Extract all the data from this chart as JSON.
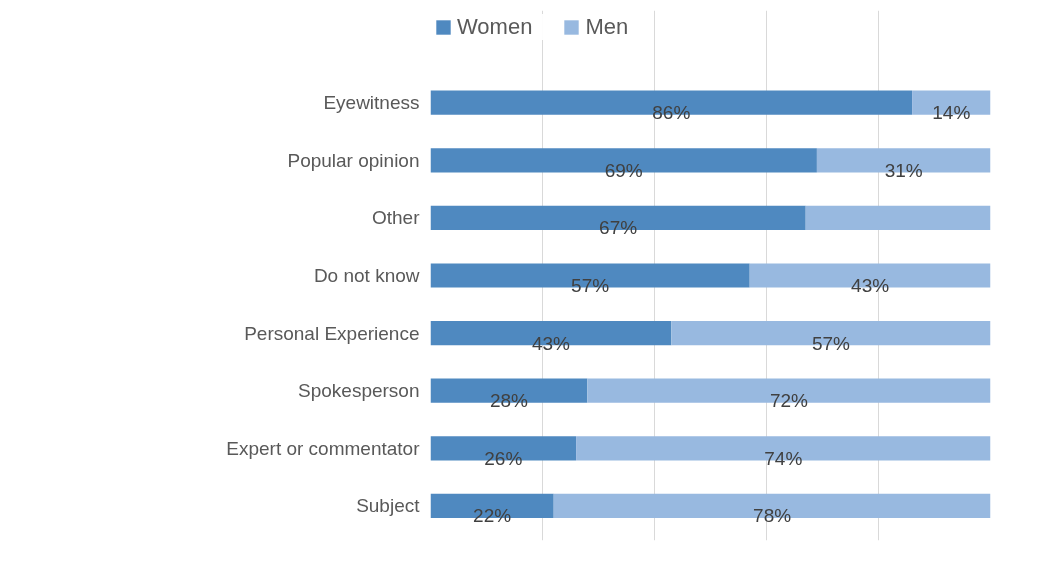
{
  "chart_data": {
    "type": "bar",
    "orientation": "horizontal",
    "stacked": true,
    "categories": [
      "Eyewitness",
      "Popular opinion",
      "Other",
      "Do not know",
      "Personal Experience",
      "Spokesperson",
      "Expert or commentator",
      "Subject"
    ],
    "series": [
      {
        "name": "Women",
        "color": "#4f89c0",
        "values": [
          86,
          69,
          67,
          57,
          43,
          28,
          26,
          22
        ],
        "value_labels": [
          "86%",
          "69%",
          "67%",
          "57%",
          "43%",
          "28%",
          "26%",
          "22%"
        ]
      },
      {
        "name": "Men",
        "color": "#98b9e0",
        "values": [
          14,
          31,
          33,
          43,
          57,
          72,
          74,
          78
        ],
        "value_labels": [
          "14%",
          "31%",
          null,
          "43%",
          "57%",
          "72%",
          "74%",
          "78%"
        ]
      }
    ],
    "xlim": [
      0,
      100
    ],
    "xticks": [
      {
        "value": 20,
        "label": null
      },
      {
        "value": 40,
        "label": null
      },
      {
        "value": 60,
        "label": null
      },
      {
        "value": 80,
        "label": null
      }
    ],
    "tick_labels": "y",
    "grid": "x",
    "legend": "top left"
  }
}
